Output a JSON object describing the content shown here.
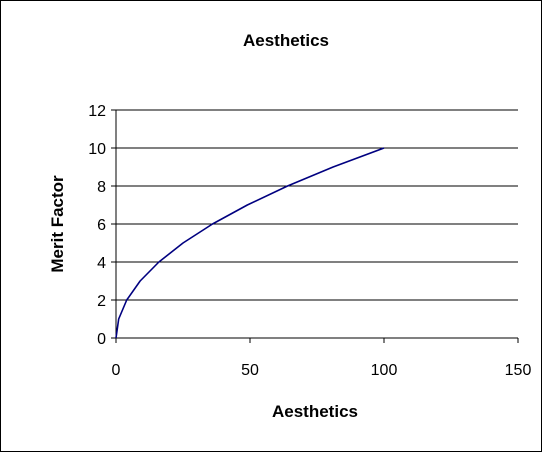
{
  "chart_data": {
    "type": "line",
    "title": "Aesthetics",
    "xlabel": "Aesthetics",
    "ylabel": "Merit Factor",
    "xlim": [
      0,
      150
    ],
    "ylim": [
      0,
      12
    ],
    "x_ticks": [
      0,
      50,
      100,
      150
    ],
    "y_ticks": [
      0,
      2,
      4,
      6,
      8,
      10,
      12
    ],
    "x_tick_labels": [
      "0",
      "50",
      "100",
      "150"
    ],
    "y_tick_labels": [
      "0",
      "2",
      "4",
      "6",
      "8",
      "10",
      "12"
    ],
    "grid": "horizontal",
    "legend": "none",
    "series": [
      {
        "color": "#000080",
        "x": [
          0,
          1,
          4,
          9,
          16,
          25,
          36,
          49,
          64,
          81,
          100
        ],
        "y": [
          0,
          1,
          2,
          3,
          4,
          5,
          6,
          7,
          8,
          9,
          10
        ]
      }
    ]
  }
}
